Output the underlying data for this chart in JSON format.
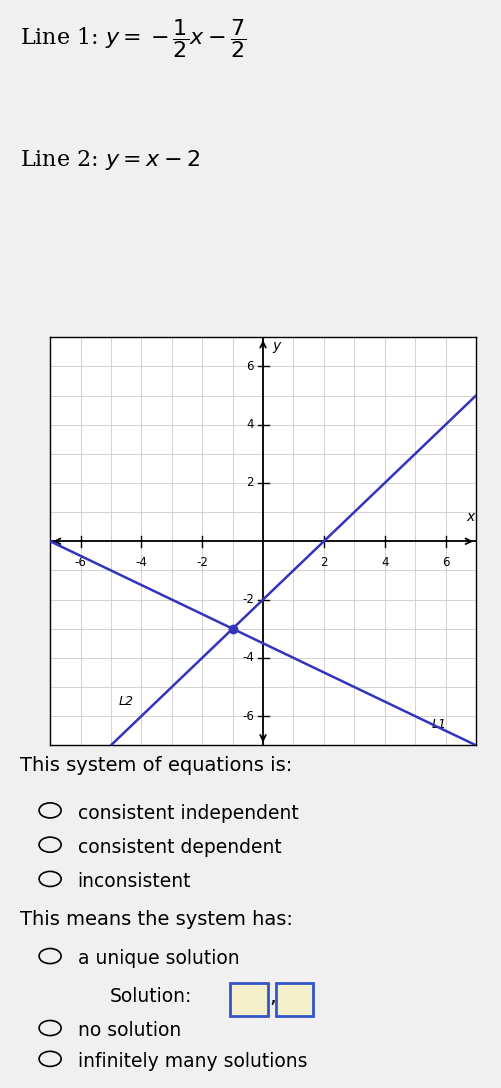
{
  "line1_slope": -0.5,
  "line1_intercept": -3.5,
  "line2_slope": 1.0,
  "line2_intercept": -2.0,
  "intersection_x": -1.0,
  "intersection_y": -3.0,
  "xmin": -7,
  "xmax": 7,
  "ymin": -7,
  "ymax": 7,
  "grid_color": "#cccccc",
  "line_color": "#3333bb",
  "axis_color": "#000000",
  "outer_bg": "#f0f0f0",
  "graph_label_L1": "L1",
  "graph_label_L2": "L2",
  "question1": "This system of equations is:",
  "option1a": "consistent independent",
  "option1b": "consistent dependent",
  "option1c": "inconsistent",
  "question2": "This means the system has:",
  "option2a": "a unique solution",
  "solution_label": "Solution:",
  "option2b": "no solution",
  "option2c": "infinitely many solutions"
}
